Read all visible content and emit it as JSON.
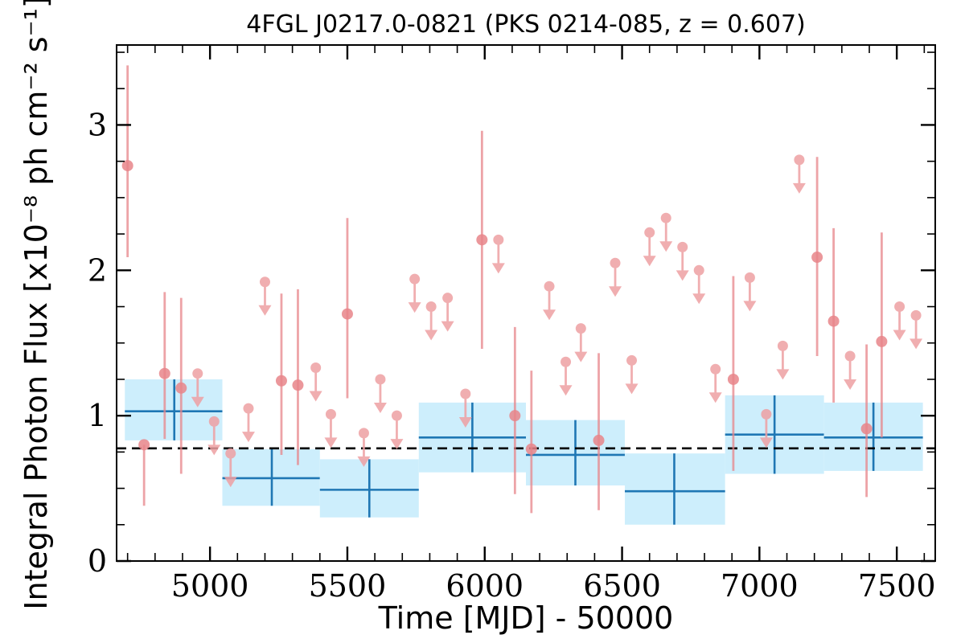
{
  "chart_data": {
    "type": "scatter",
    "title": "4FGL J0217.0-0821 (PKS 0214-085, z = 0.607)",
    "xlabel": "Time [MJD] - 50000",
    "ylabel": "Integral Photon Flux [x10⁻⁸ ph cm⁻² s⁻¹]",
    "xlim": [
      4660,
      7640
    ],
    "ylim": [
      0,
      3.55
    ],
    "x_ticks": [
      5000,
      5500,
      6000,
      6500,
      7000,
      7500
    ],
    "y_ticks": [
      0,
      1,
      2,
      3
    ],
    "mean_flux": 0.775,
    "colors": {
      "detection": "#e8858a",
      "upper_limit": "#eea0a3",
      "bin_fill": "#cdeefc",
      "bin_line": "#1f77b4",
      "mean_line": "#000000"
    },
    "detections": [
      {
        "x": 4700,
        "y": 2.72,
        "lo": 2.09,
        "hi": 3.41
      },
      {
        "x": 4760,
        "y": 0.8,
        "lo": 0.38,
        "hi": 0.8
      },
      {
        "x": 4835,
        "y": 1.29,
        "lo": 0.84,
        "hi": 1.85
      },
      {
        "x": 4895,
        "y": 1.19,
        "lo": 0.6,
        "hi": 1.81
      },
      {
        "x": 5260,
        "y": 1.24,
        "lo": 0.73,
        "hi": 1.84
      },
      {
        "x": 5320,
        "y": 1.21,
        "lo": 0.66,
        "hi": 1.87
      },
      {
        "x": 5500,
        "y": 1.7,
        "lo": 1.12,
        "hi": 2.36
      },
      {
        "x": 5990,
        "y": 2.21,
        "lo": 1.46,
        "hi": 2.96
      },
      {
        "x": 6110,
        "y": 1.0,
        "lo": 0.46,
        "hi": 1.61
      },
      {
        "x": 6170,
        "y": 0.77,
        "lo": 0.33,
        "hi": 1.31
      },
      {
        "x": 6415,
        "y": 0.83,
        "lo": 0.35,
        "hi": 1.43
      },
      {
        "x": 6905,
        "y": 1.25,
        "lo": 0.62,
        "hi": 1.96
      },
      {
        "x": 7210,
        "y": 2.09,
        "lo": 1.41,
        "hi": 2.78
      },
      {
        "x": 7270,
        "y": 1.65,
        "lo": 1.09,
        "hi": 2.29
      },
      {
        "x": 7390,
        "y": 0.91,
        "lo": 0.44,
        "hi": 1.49
      },
      {
        "x": 7445,
        "y": 1.51,
        "lo": 0.85,
        "hi": 2.26
      }
    ],
    "upper_limits": [
      {
        "x": 4955,
        "y": 1.29
      },
      {
        "x": 5015,
        "y": 0.96
      },
      {
        "x": 5075,
        "y": 0.74
      },
      {
        "x": 5140,
        "y": 1.05
      },
      {
        "x": 5200,
        "y": 1.92
      },
      {
        "x": 5385,
        "y": 1.33
      },
      {
        "x": 5440,
        "y": 1.01
      },
      {
        "x": 5560,
        "y": 0.88
      },
      {
        "x": 5620,
        "y": 1.25
      },
      {
        "x": 5680,
        "y": 1.0
      },
      {
        "x": 5745,
        "y": 1.94
      },
      {
        "x": 5805,
        "y": 1.75
      },
      {
        "x": 5865,
        "y": 1.81
      },
      {
        "x": 5930,
        "y": 1.15
      },
      {
        "x": 6050,
        "y": 2.21
      },
      {
        "x": 6235,
        "y": 1.89
      },
      {
        "x": 6295,
        "y": 1.37
      },
      {
        "x": 6350,
        "y": 1.6
      },
      {
        "x": 6475,
        "y": 2.05
      },
      {
        "x": 6535,
        "y": 1.38
      },
      {
        "x": 6600,
        "y": 2.26
      },
      {
        "x": 6660,
        "y": 2.36
      },
      {
        "x": 6720,
        "y": 2.16
      },
      {
        "x": 6780,
        "y": 2.0
      },
      {
        "x": 6840,
        "y": 1.32
      },
      {
        "x": 6965,
        "y": 1.95
      },
      {
        "x": 7025,
        "y": 1.01
      },
      {
        "x": 7085,
        "y": 1.48
      },
      {
        "x": 7145,
        "y": 2.76
      },
      {
        "x": 7330,
        "y": 1.41
      },
      {
        "x": 7510,
        "y": 1.75
      },
      {
        "x": 7570,
        "y": 1.69
      }
    ],
    "bins": [
      {
        "x0": 4690,
        "x1": 5045,
        "xc": 4870,
        "y": 1.03,
        "lo": 0.83,
        "hi": 1.25
      },
      {
        "x0": 5045,
        "x1": 5400,
        "xc": 5225,
        "y": 0.57,
        "lo": 0.38,
        "hi": 0.77
      },
      {
        "x0": 5400,
        "x1": 5760,
        "xc": 5580,
        "y": 0.49,
        "lo": 0.3,
        "hi": 0.7
      },
      {
        "x0": 5760,
        "x1": 6150,
        "xc": 5955,
        "y": 0.85,
        "lo": 0.61,
        "hi": 1.09
      },
      {
        "x0": 6150,
        "x1": 6510,
        "xc": 6330,
        "y": 0.73,
        "lo": 0.52,
        "hi": 0.97
      },
      {
        "x0": 6510,
        "x1": 6875,
        "xc": 6690,
        "y": 0.48,
        "lo": 0.25,
        "hi": 0.74
      },
      {
        "x0": 6875,
        "x1": 7235,
        "xc": 7055,
        "y": 0.87,
        "lo": 0.6,
        "hi": 1.14
      },
      {
        "x0": 7235,
        "x1": 7595,
        "xc": 7415,
        "y": 0.85,
        "lo": 0.62,
        "hi": 1.09
      }
    ]
  }
}
